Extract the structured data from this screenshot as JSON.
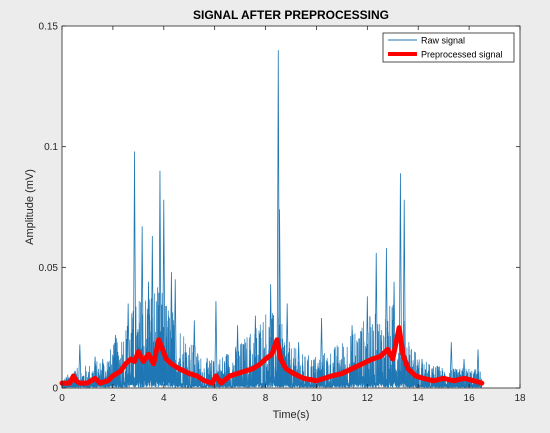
{
  "chart_data": {
    "type": "line",
    "title": "SIGNAL AFTER PREPROCESSING",
    "xlabel": "Time(s)",
    "ylabel": "Amplitude (mV)",
    "xlim": [
      0,
      18
    ],
    "ylim": [
      0,
      0.15
    ],
    "x_ticks": [
      0,
      2,
      4,
      6,
      8,
      10,
      12,
      14,
      16,
      18
    ],
    "y_ticks": [
      0,
      0.05,
      0.1,
      0.15
    ],
    "y_tick_labels": [
      "0",
      "0.05",
      "0.1",
      "0.15"
    ],
    "grid": false,
    "legend_position": "top-right",
    "series": [
      {
        "name": "Raw signal",
        "color": "#1f77b4",
        "line_width": "thin",
        "envelope": {
          "x": [
            0.0,
            0.5,
            1.0,
            1.5,
            2.0,
            2.5,
            3.0,
            3.5,
            4.0,
            4.5,
            5.0,
            5.5,
            6.0,
            6.5,
            7.0,
            7.5,
            8.0,
            8.5,
            9.0,
            9.5,
            10.0,
            10.5,
            11.0,
            11.5,
            12.0,
            12.5,
            13.0,
            13.5,
            14.0,
            14.5,
            15.0,
            15.5,
            16.0,
            16.5
          ],
          "y": [
            0.004,
            0.008,
            0.01,
            0.012,
            0.018,
            0.028,
            0.038,
            0.045,
            0.04,
            0.03,
            0.022,
            0.013,
            0.012,
            0.016,
            0.019,
            0.026,
            0.034,
            0.03,
            0.018,
            0.014,
            0.014,
            0.016,
            0.02,
            0.026,
            0.03,
            0.032,
            0.036,
            0.028,
            0.013,
            0.01,
            0.009,
            0.008,
            0.009,
            0.007
          ]
        },
        "spikes": [
          {
            "x": 0.5,
            "y": 0.007
          },
          {
            "x": 0.7,
            "y": 0.018
          },
          {
            "x": 1.3,
            "y": 0.013
          },
          {
            "x": 1.6,
            "y": 0.012
          },
          {
            "x": 2.1,
            "y": 0.022
          },
          {
            "x": 2.6,
            "y": 0.035
          },
          {
            "x": 2.85,
            "y": 0.098
          },
          {
            "x": 3.15,
            "y": 0.067
          },
          {
            "x": 3.4,
            "y": 0.044
          },
          {
            "x": 3.55,
            "y": 0.063
          },
          {
            "x": 3.85,
            "y": 0.09
          },
          {
            "x": 4.0,
            "y": 0.078
          },
          {
            "x": 4.3,
            "y": 0.048
          },
          {
            "x": 4.45,
            "y": 0.045
          },
          {
            "x": 5.2,
            "y": 0.028
          },
          {
            "x": 6.05,
            "y": 0.036
          },
          {
            "x": 6.9,
            "y": 0.026
          },
          {
            "x": 7.6,
            "y": 0.03
          },
          {
            "x": 8.2,
            "y": 0.043
          },
          {
            "x": 8.5,
            "y": 0.14
          },
          {
            "x": 8.55,
            "y": 0.074
          },
          {
            "x": 8.85,
            "y": 0.035
          },
          {
            "x": 9.3,
            "y": 0.019
          },
          {
            "x": 10.2,
            "y": 0.029
          },
          {
            "x": 11.4,
            "y": 0.026
          },
          {
            "x": 12.0,
            "y": 0.038
          },
          {
            "x": 12.35,
            "y": 0.056
          },
          {
            "x": 12.75,
            "y": 0.058
          },
          {
            "x": 13.05,
            "y": 0.044
          },
          {
            "x": 13.3,
            "y": 0.089
          },
          {
            "x": 13.45,
            "y": 0.078
          },
          {
            "x": 14.15,
            "y": 0.012
          },
          {
            "x": 15.3,
            "y": 0.019
          },
          {
            "x": 15.8,
            "y": 0.012
          },
          {
            "x": 16.35,
            "y": 0.016
          }
        ]
      },
      {
        "name": "Preprocessed signal",
        "color": "#ff0000",
        "line_width": "thick",
        "x": [
          0.0,
          0.3,
          0.45,
          0.55,
          0.7,
          1.0,
          1.3,
          1.5,
          1.8,
          2.0,
          2.3,
          2.5,
          2.7,
          2.85,
          3.0,
          3.2,
          3.4,
          3.6,
          3.8,
          3.95,
          4.1,
          4.3,
          4.6,
          5.0,
          5.3,
          5.6,
          5.9,
          6.05,
          6.25,
          6.6,
          6.9,
          7.2,
          7.5,
          7.8,
          8.0,
          8.25,
          8.45,
          8.6,
          8.8,
          9.1,
          9.5,
          10.0,
          10.3,
          10.6,
          11.0,
          11.4,
          11.8,
          12.2,
          12.5,
          12.8,
          13.0,
          13.25,
          13.4,
          13.6,
          13.9,
          14.2,
          14.6,
          15.0,
          15.4,
          15.8,
          16.2,
          16.5
        ],
        "y": [
          0.002,
          0.002,
          0.005,
          0.003,
          0.002,
          0.002,
          0.004,
          0.002,
          0.003,
          0.005,
          0.007,
          0.01,
          0.012,
          0.011,
          0.015,
          0.011,
          0.014,
          0.01,
          0.02,
          0.016,
          0.012,
          0.01,
          0.008,
          0.006,
          0.005,
          0.003,
          0.002,
          0.005,
          0.002,
          0.005,
          0.006,
          0.007,
          0.008,
          0.01,
          0.012,
          0.014,
          0.02,
          0.012,
          0.008,
          0.006,
          0.004,
          0.003,
          0.004,
          0.005,
          0.006,
          0.008,
          0.01,
          0.012,
          0.013,
          0.016,
          0.012,
          0.025,
          0.014,
          0.008,
          0.005,
          0.004,
          0.003,
          0.004,
          0.003,
          0.004,
          0.003,
          0.002
        ]
      }
    ]
  }
}
